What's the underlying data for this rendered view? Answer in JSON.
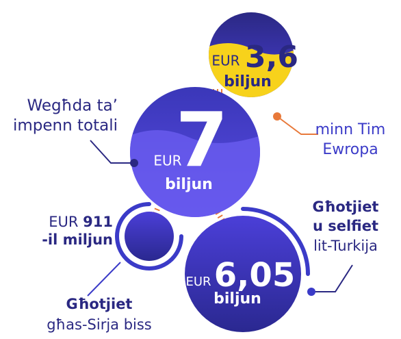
{
  "eu_budget": {
    "currency": "EUR",
    "amount": "3,6",
    "unit": "biljun",
    "caption": [
      "minn Tim",
      "Ewropa"
    ]
  },
  "total": {
    "caption": [
      "Wegħda ta’",
      "impenn totali"
    ],
    "currency": "EUR",
    "amount": "7",
    "unit": "biljun"
  },
  "syria": {
    "currency": "EUR",
    "amount": "911",
    "unit": "-il miljun",
    "caption_bold": "Għotjiet",
    "caption": "għas-Sirja biss"
  },
  "turkey": {
    "currency": "EUR",
    "amount": "6,05",
    "unit": "biljun",
    "caption_bold": [
      "Għotjiet",
      "u selfiet"
    ],
    "caption": "lit-Turkija"
  }
}
